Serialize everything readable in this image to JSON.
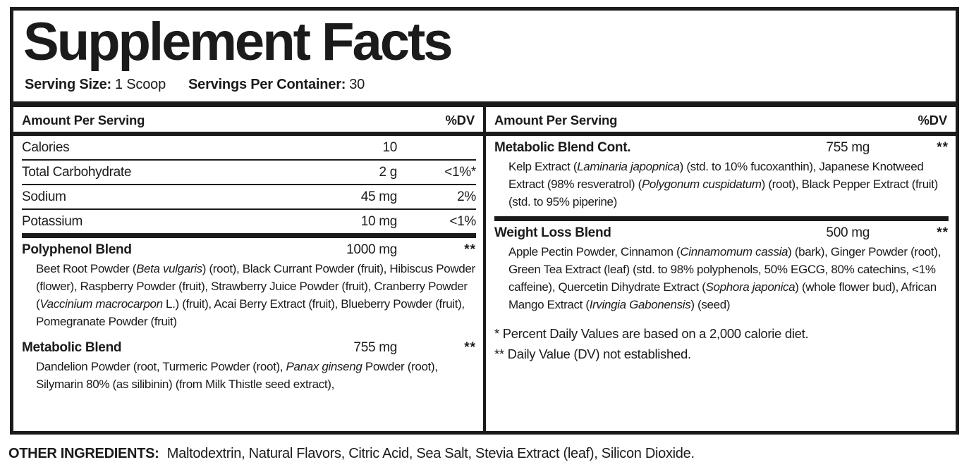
{
  "title": "Supplement Facts",
  "colors": {
    "text": "#1b1b1b",
    "background": "#ffffff",
    "rule": "#1b1b1b"
  },
  "serving": {
    "size_label": "Serving Size:",
    "size_value": "1 Scoop",
    "container_label": "Servings Per Container:",
    "container_value": "30"
  },
  "column_header": {
    "left": "Amount Per Serving",
    "right": "%DV"
  },
  "left": {
    "nutrients": [
      {
        "name": "Calories",
        "amount": "10",
        "dv": ""
      },
      {
        "name": "Total Carbohydrate",
        "amount": "2 g",
        "dv": "<1%*"
      },
      {
        "name": "Sodium",
        "amount": "45 mg",
        "dv": "2%"
      },
      {
        "name": "Potassium",
        "amount": "10 mg",
        "dv": "<1%"
      }
    ],
    "blends": [
      {
        "name": "Polyphenol Blend",
        "amount": "1000 mg",
        "dv": "**",
        "desc": [
          {
            "t": "Beet Root Powder ("
          },
          {
            "t": "Beta vulgaris",
            "i": true
          },
          {
            "t": ") (root), Black Currant Powder (fruit), Hibiscus Powder (flower), Raspberry Powder (fruit), Strawberry Juice Powder (fruit), Cranberry Powder ("
          },
          {
            "t": "Vaccinium macrocarpon",
            "i": true
          },
          {
            "t": " L.) (fruit), Acai Berry Extract (fruit), Blueberry Powder (fruit), Pomegranate Powder (fruit)"
          }
        ]
      },
      {
        "name": "Metabolic Blend",
        "amount": "755 mg",
        "dv": "**",
        "desc": [
          {
            "t": "Dandelion Powder (root, Turmeric Powder (root), "
          },
          {
            "t": "Panax ginseng",
            "i": true
          },
          {
            "t": " Powder (root), Silymarin 80% (as silibinin) (from Milk Thistle seed extract),"
          }
        ]
      }
    ]
  },
  "right": {
    "blends": [
      {
        "name": "Metabolic Blend Cont.",
        "amount": "755 mg",
        "dv": "**",
        "desc": [
          {
            "t": "Kelp Extract ("
          },
          {
            "t": "Laminaria japopnica",
            "i": true
          },
          {
            "t": ") (std. to 10% fucoxanthin), Japanese Knotweed Extract (98% resveratrol) ("
          },
          {
            "t": "Polygonum cuspidatum",
            "i": true
          },
          {
            "t": ") (root), Black Pepper Extract (fruit) (std. to 95% piperine)"
          }
        ]
      },
      {
        "name": "Weight Loss Blend",
        "amount": "500 mg",
        "dv": "**",
        "desc": [
          {
            "t": "Apple Pectin Powder, Cinnamon ("
          },
          {
            "t": "Cinnamomum cassia",
            "i": true
          },
          {
            "t": ") (bark), Ginger Powder (root), Green Tea Extract (leaf) (std. to 98% polyphenols, 50% EGCG, 80% catechins, <1% caffeine), Quercetin Dihydrate Extract ("
          },
          {
            "t": "Sophora japonica",
            "i": true
          },
          {
            "t": ") (whole flower bud), African Mango Extract ("
          },
          {
            "t": "Irvingia Gabonensis",
            "i": true
          },
          {
            "t": ") (seed)"
          }
        ]
      }
    ],
    "footnotes": [
      "* Percent Daily Values are based on a 2,000 calorie diet.",
      "** Daily Value (DV) not established."
    ]
  },
  "other_ingredients": {
    "label": "OTHER INGREDIENTS:",
    "text": "Maltodextrin, Natural Flavors, Citric Acid, Sea Salt, Stevia Extract (leaf), Silicon Dioxide."
  }
}
